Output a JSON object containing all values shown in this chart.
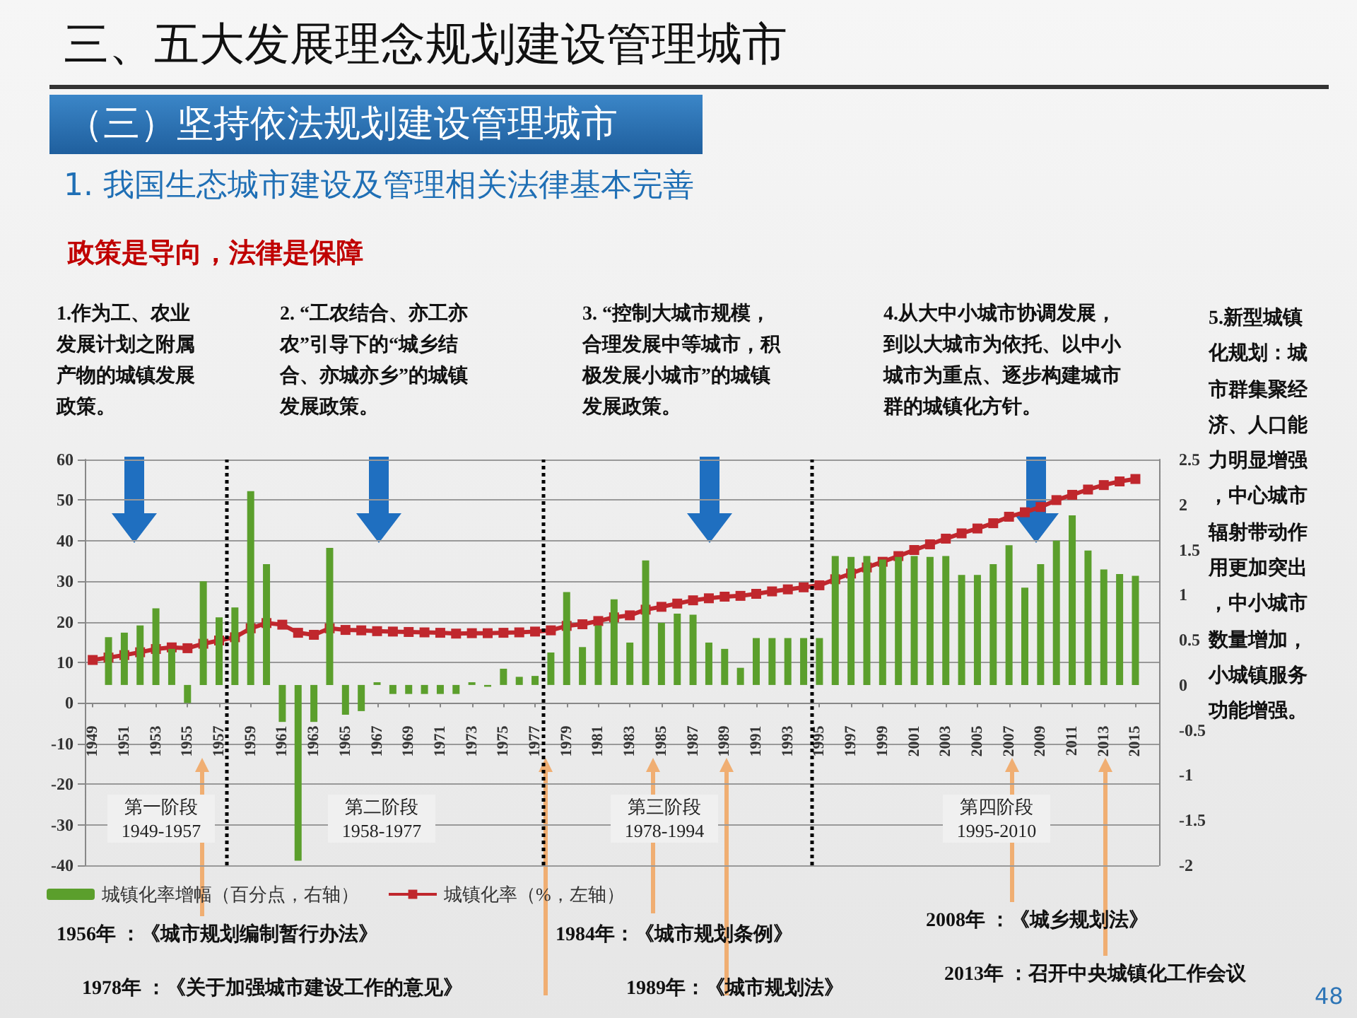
{
  "chart_data": {
    "type": "line",
    "title": "三、五大发展理念规划建设管理城市",
    "subtitle": "（三）坚持依法规划建设管理城市",
    "annotations": [
      "1. 我国生态城市建设及管理相关法律基本完善",
      "政策是导向，法律是保障",
      "1.作为工、农业发展计划之附属产物的城镇发展政策。",
      "2. “工农结合、亦工亦农”引导下的“城乡结合、亦城亦乡”的城镇发展政策。",
      "3. “控制大城市规模，合理发展中等城市，积极发展小城市”的城镇发展政策。",
      "4.从大中小城市协调发展，到以大城市为依托、以中小城市为重点、逐步构建城市群的城镇化方针。",
      "5.新型城镇化规划：城市群集聚经济、人口能力明显增强，中心城市辐射带动作用更加突出，中小城市数量增加，小城镇服务功能增强。",
      "第一阶段\n1949-1957",
      "第二阶段\n1958-1977",
      "第三阶段\n1978-1994",
      "第四阶段\n1995-2010",
      "1956年 ：《城市规划编制暂行办法》",
      "1978年 ：《关于加强城市建设工作的意见》",
      "1984年：《城市规划条例》",
      "1989年：《城市规划法》",
      "2008年 ：《城乡规划法》",
      "2013年 ：召开中央城镇化工作会议",
      "48"
    ],
    "x": [
      1949,
      1950,
      1951,
      1952,
      1953,
      1954,
      1955,
      1956,
      1957,
      1958,
      1959,
      1960,
      1961,
      1962,
      1963,
      1964,
      1965,
      1966,
      1967,
      1968,
      1969,
      1970,
      1971,
      1972,
      1973,
      1974,
      1975,
      1976,
      1977,
      1978,
      1979,
      1980,
      1981,
      1982,
      1983,
      1984,
      1985,
      1986,
      1987,
      1988,
      1989,
      1990,
      1991,
      1992,
      1993,
      1994,
      1995,
      1996,
      1997,
      1998,
      1999,
      2000,
      2001,
      2002,
      2003,
      2004,
      2005,
      2006,
      2007,
      2008,
      2009,
      2010,
      2011,
      2012,
      2013,
      2014,
      2015
    ],
    "series": [
      {
        "name": "城镇化率增幅（百分点，右轴）",
        "type": "bar",
        "axis": "y2",
        "color": "#5b9f2c",
        "values": [
          null,
          0.53,
          0.58,
          0.66,
          0.85,
          0.4,
          -0.2,
          1.15,
          0.75,
          0.86,
          2.15,
          1.34,
          -0.41,
          -1.95,
          -0.41,
          1.52,
          -0.33,
          -0.29,
          0.03,
          -0.1,
          -0.1,
          -0.1,
          -0.1,
          -0.1,
          0.03,
          -0.02,
          0.18,
          0.09,
          0.1,
          0.36,
          1.03,
          0.42,
          0.66,
          0.95,
          0.47,
          1.38,
          0.69,
          0.79,
          0.78,
          0.47,
          0.4,
          0.19,
          0.52,
          0.52,
          0.52,
          0.52,
          0.52,
          1.43,
          1.42,
          1.43,
          1.39,
          1.42,
          1.43,
          1.42,
          1.43,
          1.22,
          1.22,
          1.34,
          1.55,
          1.08,
          1.34,
          1.6,
          1.88,
          1.49,
          1.28,
          1.23,
          1.21
        ]
      },
      {
        "name": "城镇化率（%，左轴）",
        "color": "#c0272d",
        "values": [
          10.6,
          11.2,
          11.8,
          12.5,
          13.3,
          13.7,
          13.5,
          14.6,
          15.4,
          16.2,
          18.4,
          19.7,
          19.3,
          17.3,
          16.8,
          18.4,
          18.0,
          17.9,
          17.7,
          17.6,
          17.5,
          17.4,
          17.3,
          17.1,
          17.2,
          17.2,
          17.3,
          17.4,
          17.6,
          17.9,
          19.0,
          19.4,
          20.2,
          21.1,
          21.6,
          23.0,
          23.7,
          24.5,
          25.3,
          25.8,
          26.2,
          26.4,
          26.9,
          27.5,
          28.0,
          28.5,
          29.0,
          30.5,
          31.9,
          33.4,
          34.8,
          36.2,
          37.7,
          39.1,
          40.5,
          41.8,
          43.0,
          44.3,
          45.9,
          47.0,
          48.3,
          50.0,
          51.3,
          52.6,
          53.7,
          54.6,
          55.2
        ]
      }
    ],
    "xlim": [
      1948.5,
      2016.5
    ],
    "xticks": [
      1949,
      1951,
      1953,
      1955,
      1957,
      1959,
      1961,
      1963,
      1965,
      1967,
      1969,
      1971,
      1973,
      1975,
      1977,
      1979,
      1981,
      1983,
      1985,
      1987,
      1989,
      1991,
      1993,
      1995,
      1997,
      1999,
      2001,
      2003,
      2005,
      2007,
      2009,
      2011,
      2013,
      2015
    ],
    "ylim": [
      -40,
      60
    ],
    "yticks": [
      -40,
      -30,
      -20,
      -10,
      0,
      10,
      20,
      30,
      40,
      50,
      60
    ],
    "y2lim": [
      -2,
      2.5
    ],
    "y2ticks": [
      -2,
      -1.5,
      -1,
      -0.5,
      0,
      0.5,
      1,
      1.5,
      2,
      2.5
    ],
    "ref_lines": [
      {
        "axis": "x",
        "value": 1957.5,
        "color": "#000000",
        "line_style": "dotted"
      },
      {
        "axis": "x",
        "value": 1977.5,
        "color": "#000000",
        "line_style": "dotted"
      },
      {
        "axis": "x",
        "value": 1994.5,
        "color": "#000000",
        "line_style": "dotted"
      }
    ],
    "grid": "y",
    "legend": "bottom left",
    "marker": "square"
  }
}
